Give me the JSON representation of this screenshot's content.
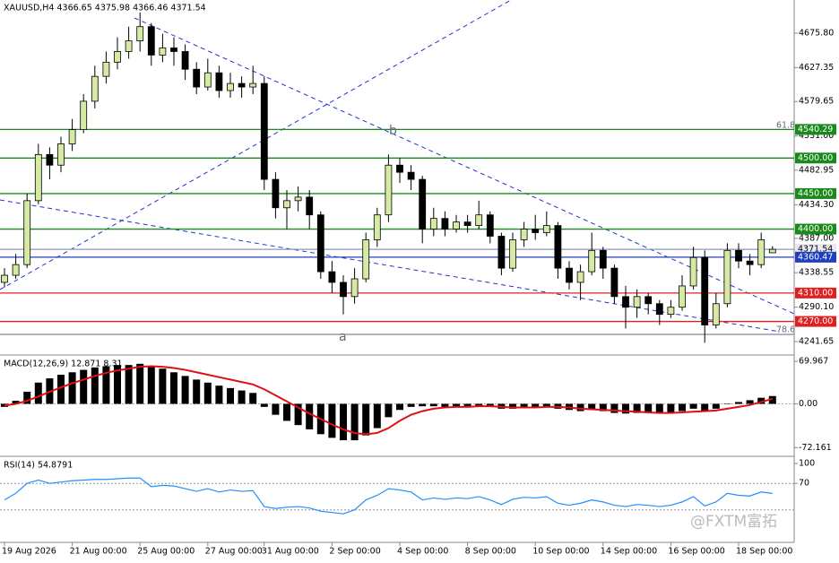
{
  "chart_data": [
    {
      "type": "candlestick",
      "title": "XAUUSD,H4  4366.65 4375.98 4366.46 4371.54",
      "up_color": "#d6eaa4",
      "down_color": "#000000",
      "categories": [
        "19 Aug 2026",
        null,
        null,
        null,
        null,
        null,
        "21 Aug 00:00",
        null,
        null,
        null,
        null,
        null,
        "25 Aug 00:00",
        null,
        null,
        null,
        null,
        null,
        "27 Aug 00:00",
        null,
        null,
        null,
        null,
        "31 Aug 00:00",
        null,
        null,
        null,
        null,
        null,
        "2 Sep 00:00",
        null,
        null,
        null,
        null,
        null,
        "4 Sep 00:00",
        null,
        null,
        null,
        null,
        null,
        "8 Sep 00:00",
        null,
        null,
        null,
        null,
        null,
        "10 Sep 00:00",
        null,
        null,
        null,
        null,
        null,
        "14 Sep 00:00",
        null,
        null,
        null,
        null,
        null,
        "16 Sep 00:00",
        null,
        null,
        null,
        null,
        null,
        "18 Sep 00:00",
        null,
        null,
        null
      ],
      "open": [
        4325,
        4335,
        4350,
        4440,
        4505,
        4490,
        4520,
        4540,
        4580,
        4615,
        4635,
        4650,
        4665,
        4685,
        4645,
        4655,
        4650,
        4625,
        4600,
        4620,
        4595,
        4605,
        4600,
        4605,
        4470,
        4430,
        4440,
        4445,
        4420,
        4340,
        4325,
        4305,
        4330,
        4385,
        4420,
        4490,
        4480,
        4470,
        4400,
        4415,
        4400,
        4410,
        4405,
        4420,
        4390,
        4345,
        4385,
        4400,
        4395,
        4405,
        4345,
        4325,
        4340,
        4370,
        4345,
        4305,
        4290,
        4305,
        4295,
        4280,
        4290,
        4320,
        4360,
        4265,
        4295,
        4370,
        4355,
        4350,
        4366.65
      ],
      "high": [
        4345,
        4365,
        4450,
        4520,
        4515,
        4530,
        4555,
        4590,
        4630,
        4650,
        4670,
        4685,
        4705,
        4690,
        4675,
        4670,
        4660,
        4635,
        4640,
        4630,
        4620,
        4615,
        4630,
        4615,
        4480,
        4455,
        4460,
        4455,
        4425,
        4355,
        4335,
        4345,
        4395,
        4430,
        4505,
        4500,
        4490,
        4475,
        4430,
        4425,
        4420,
        4420,
        4440,
        4425,
        4395,
        4395,
        4410,
        4420,
        4425,
        4410,
        4355,
        4350,
        4395,
        4375,
        4350,
        4320,
        4315,
        4310,
        4300,
        4300,
        4335,
        4375,
        4370,
        4310,
        4380,
        4380,
        4365,
        4395,
        4375.98
      ],
      "low": [
        4318,
        4330,
        4345,
        4435,
        4470,
        4480,
        4510,
        4535,
        4570,
        4605,
        4625,
        4640,
        4650,
        4630,
        4635,
        4630,
        4610,
        4590,
        4595,
        4585,
        4585,
        4585,
        4590,
        4455,
        4415,
        4400,
        4425,
        4400,
        4330,
        4310,
        4280,
        4295,
        4325,
        4375,
        4410,
        4465,
        4455,
        4380,
        4390,
        4390,
        4395,
        4395,
        4400,
        4380,
        4335,
        4340,
        4375,
        4385,
        4390,
        4330,
        4315,
        4300,
        4335,
        4330,
        4295,
        4260,
        4275,
        4280,
        4265,
        4275,
        4285,
        4315,
        4240,
        4260,
        4290,
        4345,
        4335,
        4345,
        4366.46
      ],
      "close": [
        4335,
        4350,
        4440,
        4505,
        4490,
        4520,
        4540,
        4580,
        4615,
        4635,
        4650,
        4665,
        4685,
        4645,
        4655,
        4650,
        4625,
        4600,
        4620,
        4595,
        4605,
        4600,
        4605,
        4470,
        4430,
        4440,
        4445,
        4420,
        4340,
        4325,
        4305,
        4330,
        4385,
        4420,
        4490,
        4480,
        4470,
        4400,
        4415,
        4400,
        4410,
        4405,
        4420,
        4390,
        4345,
        4385,
        4400,
        4395,
        4405,
        4345,
        4325,
        4340,
        4370,
        4345,
        4305,
        4290,
        4305,
        4295,
        4280,
        4290,
        4320,
        4360,
        4265,
        4295,
        4370,
        4355,
        4350,
        4385,
        4371.54
      ],
      "ylim": [
        4224,
        4722.5
      ],
      "yticks": [
        {
          "value": 4675.8,
          "label": "4675.80"
        },
        {
          "value": 4627.35,
          "label": "4627.35"
        },
        {
          "value": 4579.65,
          "label": "4579.65"
        },
        {
          "value": 4531,
          "label": "4531.00"
        },
        {
          "value": 4482.95,
          "label": "4482.95"
        },
        {
          "value": 4434.3,
          "label": "4434.30"
        },
        {
          "value": 4387,
          "label": "4387.00"
        },
        {
          "value": 4338.55,
          "label": "4338.55"
        },
        {
          "value": 4290.1,
          "label": "4290.10"
        },
        {
          "value": 4241.65,
          "label": "4241.65"
        }
      ],
      "levels": [
        {
          "value": 4540.29,
          "label": "4540.29",
          "color": "#1a8a1a"
        },
        {
          "value": 4500,
          "label": "4500.00",
          "color": "#1a8a1a"
        },
        {
          "value": 4450,
          "label": "4450.00",
          "color": "#1a8a1a"
        },
        {
          "value": 4400,
          "label": "4400.00",
          "color": "#1a8a1a"
        },
        {
          "value": 4371.54,
          "label": "4371.54",
          "color": "#8899bb"
        },
        {
          "value": 4360.47,
          "label": "4360.47",
          "color": "#1f3fbf"
        },
        {
          "value": 4310,
          "label": "4310.00",
          "color": "#e02020"
        },
        {
          "value": 4270,
          "label": "4270.00",
          "color": "#e02020"
        }
      ],
      "annotations": [
        "a",
        "b",
        "61.8",
        "78.6"
      ],
      "watermark": "@FXTM富拓"
    },
    {
      "type": "macd",
      "title": "MACD(12,26,9) 12.871 8.31",
      "ylim": [
        -85,
        79
      ],
      "yticks": [
        {
          "value": 69.967,
          "label": "69.967"
        },
        {
          "value": 0,
          "label": "0.00"
        },
        {
          "value": -72.161,
          "label": "-72.161"
        }
      ],
      "histogram": [
        -5,
        5,
        20,
        35,
        42,
        48,
        52,
        56,
        60,
        62,
        64,
        64,
        66,
        62,
        58,
        52,
        46,
        40,
        35,
        30,
        26,
        22,
        18,
        -5,
        -18,
        -28,
        -35,
        -42,
        -50,
        -56,
        -60,
        -60,
        -52,
        -40,
        -22,
        -10,
        -5,
        -4,
        -4,
        -5,
        -4,
        -4,
        -3,
        -5,
        -8,
        -8,
        -6,
        -5,
        -4,
        -8,
        -10,
        -12,
        -10,
        -12,
        -15,
        -16,
        -15,
        -15,
        -16,
        -14,
        -12,
        -8,
        -12,
        -8,
        0,
        3,
        6,
        10,
        12.871
      ],
      "signal": [
        -3,
        0,
        5,
        12,
        20,
        27,
        34,
        40,
        46,
        51,
        55,
        58,
        61,
        62,
        61,
        59,
        56,
        52,
        48,
        44,
        40,
        36,
        32,
        24,
        14,
        4,
        -6,
        -16,
        -25,
        -34,
        -42,
        -48,
        -50,
        -48,
        -40,
        -28,
        -18,
        -12,
        -8,
        -6,
        -5,
        -5,
        -4,
        -4,
        -5,
        -6,
        -6,
        -6,
        -5,
        -5,
        -6,
        -8,
        -9,
        -10,
        -11,
        -12,
        -13,
        -14,
        -15,
        -15,
        -14,
        -13,
        -12,
        -11,
        -8,
        -5,
        -2,
        3,
        8.31
      ],
      "color": "#e01010"
    },
    {
      "type": "line",
      "title": "RSI(14) 54.8791",
      "ylim": [
        -17.7,
        109.5
      ],
      "yticks": [
        100,
        70
      ],
      "levels": [
        70,
        30
      ],
      "color": "#1e90ff",
      "values": [
        45,
        55,
        70,
        75,
        70,
        72,
        74,
        75,
        76,
        76,
        77,
        78,
        78,
        65,
        67,
        66,
        62,
        58,
        62,
        57,
        60,
        58,
        59,
        35,
        32,
        34,
        35,
        33,
        28,
        26,
        24,
        30,
        45,
        52,
        62,
        60,
        57,
        45,
        48,
        46,
        48,
        47,
        50,
        45,
        38,
        46,
        49,
        48,
        50,
        40,
        37,
        40,
        45,
        42,
        37,
        35,
        38,
        37,
        35,
        37,
        42,
        50,
        36,
        42,
        55,
        52,
        51,
        57,
        54.8791
      ]
    }
  ]
}
